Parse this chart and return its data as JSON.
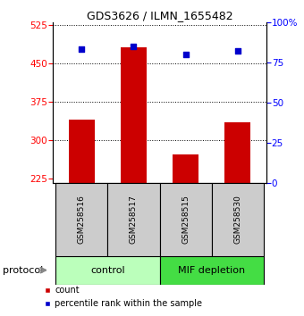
{
  "title": "GDS3626 / ILMN_1655482",
  "samples": [
    "GSM258516",
    "GSM258517",
    "GSM258515",
    "GSM258530"
  ],
  "bar_values": [
    340,
    480,
    272,
    335
  ],
  "percentile_values": [
    83,
    85,
    80,
    82
  ],
  "ylim_left": [
    215,
    530
  ],
  "ylim_right": [
    0,
    100
  ],
  "yticks_left": [
    225,
    300,
    375,
    450,
    525
  ],
  "yticks_right": [
    0,
    25,
    50,
    75,
    100
  ],
  "bar_color": "#cc0000",
  "dot_color": "#0000cc",
  "bar_width": 0.5,
  "grid_yticks": [
    300,
    375,
    450
  ],
  "ctrl_color_light": "#bbffbb",
  "ctrl_color": "#aaffaa",
  "mif_color": "#44dd44",
  "sample_box_color": "#cccccc",
  "protocol_label": "protocol",
  "legend_items": [
    {
      "color": "#cc0000",
      "label": "count"
    },
    {
      "color": "#0000cc",
      "label": "percentile rank within the sample"
    }
  ],
  "fig_width": 3.4,
  "fig_height": 3.54,
  "dpi": 100
}
